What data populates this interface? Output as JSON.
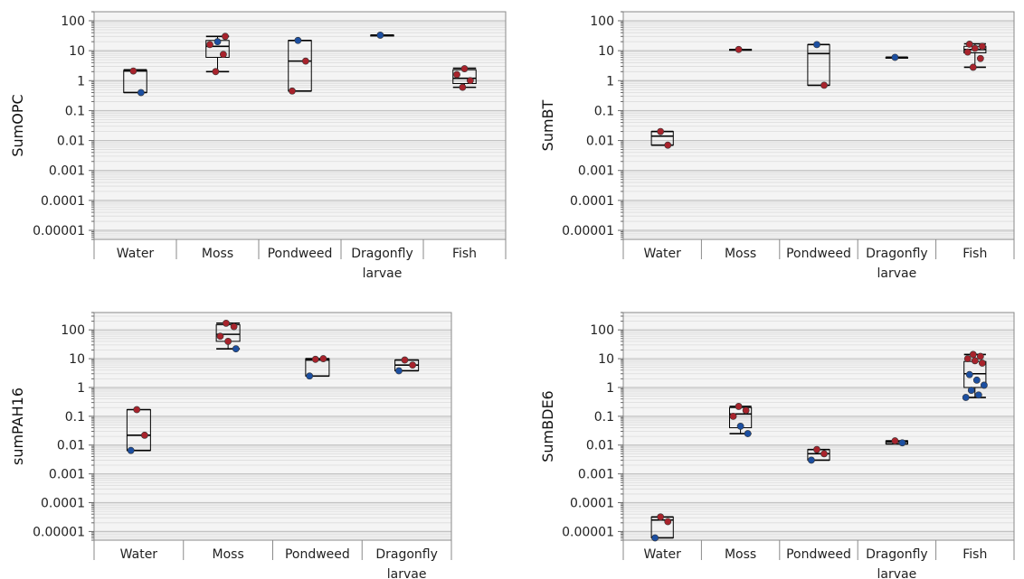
{
  "chart_data": [
    {
      "type": "box",
      "ylabel": "SumOPC",
      "yscale": "log",
      "ylim": [
        5e-06,
        200
      ],
      "yticks": [
        "100",
        "10",
        "1",
        "0.1",
        "0.01",
        "0.001",
        "0.0001",
        "0.00001"
      ],
      "categories": [
        "Water",
        "Moss",
        "Pondweed",
        "Dragonfly\nlarvae",
        "Fish"
      ],
      "boxes": [
        {
          "min": 0.4,
          "q1": 0.4,
          "median": 2.1,
          "q3": 2.2,
          "max": 2.3
        },
        {
          "min": 2.0,
          "q1": 6.0,
          "median": 14.0,
          "q3": 22.0,
          "max": 30.0
        },
        {
          "min": 0.45,
          "q1": 0.45,
          "median": 4.5,
          "q3": 22.0,
          "max": 22.0
        },
        {
          "min": 33.0,
          "q1": 33.0,
          "median": 33.0,
          "q3": 33.0,
          "max": 33.0
        },
        {
          "min": 0.6,
          "q1": 0.8,
          "median": 1.2,
          "q3": 2.3,
          "max": 2.6
        }
      ],
      "points": [
        {
          "category": 0,
          "y": 2.1,
          "color": "red"
        },
        {
          "category": 0,
          "y": 0.4,
          "color": "blue"
        },
        {
          "category": 1,
          "y": 2.0,
          "color": "red"
        },
        {
          "category": 1,
          "y": 7.5,
          "color": "red"
        },
        {
          "category": 1,
          "y": 16.0,
          "color": "red"
        },
        {
          "category": 1,
          "y": 20.0,
          "color": "blue"
        },
        {
          "category": 1,
          "y": 30.0,
          "color": "red"
        },
        {
          "category": 2,
          "y": 22.0,
          "color": "blue"
        },
        {
          "category": 2,
          "y": 4.5,
          "color": "red"
        },
        {
          "category": 2,
          "y": 0.45,
          "color": "red"
        },
        {
          "category": 3,
          "y": 33.0,
          "color": "blue"
        },
        {
          "category": 4,
          "y": 0.6,
          "color": "red"
        },
        {
          "category": 4,
          "y": 1.0,
          "color": "red"
        },
        {
          "category": 4,
          "y": 1.6,
          "color": "red"
        },
        {
          "category": 4,
          "y": 2.5,
          "color": "red"
        }
      ]
    },
    {
      "type": "box",
      "ylabel": "SumBT",
      "yscale": "log",
      "ylim": [
        5e-06,
        200
      ],
      "yticks": [
        "100",
        "10",
        "1",
        "0.1",
        "0.01",
        "0.001",
        "0.0001",
        "0.00001"
      ],
      "categories": [
        "Water",
        "Moss",
        "Pondweed",
        "Dragonfly\nlarvae",
        "Fish"
      ],
      "boxes": [
        {
          "min": 0.007,
          "q1": 0.007,
          "median": 0.014,
          "q3": 0.02,
          "max": 0.02
        },
        {
          "min": 11.0,
          "q1": 11.0,
          "median": 11.0,
          "q3": 11.0,
          "max": 11.0
        },
        {
          "min": 0.7,
          "q1": 0.7,
          "median": 8.0,
          "q3": 16.0,
          "max": 16.0
        },
        {
          "min": 6.0,
          "q1": 6.0,
          "median": 6.0,
          "q3": 6.0,
          "max": 6.0
        },
        {
          "min": 2.8,
          "q1": 8.5,
          "median": 11.0,
          "q3": 14.0,
          "max": 17.0
        }
      ],
      "points": [
        {
          "category": 0,
          "y": 0.02,
          "color": "red"
        },
        {
          "category": 0,
          "y": 0.007,
          "color": "red"
        },
        {
          "category": 1,
          "y": 11.0,
          "color": "red"
        },
        {
          "category": 2,
          "y": 16.0,
          "color": "blue"
        },
        {
          "category": 2,
          "y": 0.7,
          "color": "red"
        },
        {
          "category": 3,
          "y": 6.0,
          "color": "blue"
        },
        {
          "category": 4,
          "y": 2.8,
          "color": "red"
        },
        {
          "category": 4,
          "y": 5.5,
          "color": "red"
        },
        {
          "category": 4,
          "y": 9.0,
          "color": "red"
        },
        {
          "category": 4,
          "y": 12.0,
          "color": "red"
        },
        {
          "category": 4,
          "y": 14.0,
          "color": "red"
        },
        {
          "category": 4,
          "y": 16.5,
          "color": "red"
        }
      ]
    },
    {
      "type": "box",
      "ylabel": "sumPAH16",
      "yscale": "log",
      "ylim": [
        5e-06,
        400
      ],
      "yticks": [
        "100",
        "10",
        "1",
        "0.1",
        "0.01",
        "0.001",
        "0.0001",
        "0.00001"
      ],
      "categories": [
        "Water",
        "Moss",
        "Pondweed",
        "Dragonfly\nlarvae"
      ],
      "boxes": [
        {
          "min": 0.0065,
          "q1": 0.0065,
          "median": 0.022,
          "q3": 0.17,
          "max": 0.17
        },
        {
          "min": 22.0,
          "q1": 40.0,
          "median": 70.0,
          "q3": 150.0,
          "max": 170.0
        },
        {
          "min": 2.5,
          "q1": 2.5,
          "median": 9.0,
          "q3": 10.0,
          "max": 10.0
        },
        {
          "min": 3.8,
          "q1": 3.8,
          "median": 6.0,
          "q3": 9.0,
          "max": 9.0
        }
      ],
      "points": [
        {
          "category": 0,
          "y": 0.17,
          "color": "red"
        },
        {
          "category": 0,
          "y": 0.022,
          "color": "red"
        },
        {
          "category": 0,
          "y": 0.0065,
          "color": "blue"
        },
        {
          "category": 1,
          "y": 170.0,
          "color": "red"
        },
        {
          "category": 1,
          "y": 130.0,
          "color": "red"
        },
        {
          "category": 1,
          "y": 60.0,
          "color": "red"
        },
        {
          "category": 1,
          "y": 40.0,
          "color": "red"
        },
        {
          "category": 1,
          "y": 22.0,
          "color": "blue"
        },
        {
          "category": 2,
          "y": 9.5,
          "color": "red"
        },
        {
          "category": 2,
          "y": 10.0,
          "color": "red"
        },
        {
          "category": 2,
          "y": 2.5,
          "color": "blue"
        },
        {
          "category": 3,
          "y": 9.0,
          "color": "red"
        },
        {
          "category": 3,
          "y": 6.0,
          "color": "red"
        },
        {
          "category": 3,
          "y": 3.8,
          "color": "blue"
        }
      ]
    },
    {
      "type": "box",
      "ylabel": "SumBDE6",
      "yscale": "log",
      "ylim": [
        5e-06,
        400
      ],
      "yticks": [
        "100",
        "10",
        "1",
        "0.1",
        "0.01",
        "0.001",
        "0.0001",
        "0.00001"
      ],
      "categories": [
        "Water",
        "Moss",
        "Pondweed",
        "Dragonfly\nlarvae",
        "Fish"
      ],
      "boxes": [
        {
          "min": 6e-06,
          "q1": 6e-06,
          "median": 2.5e-05,
          "q3": 3.2e-05,
          "max": 3.2e-05
        },
        {
          "min": 0.025,
          "q1": 0.04,
          "median": 0.12,
          "q3": 0.2,
          "max": 0.22
        },
        {
          "min": 0.003,
          "q1": 0.003,
          "median": 0.005,
          "q3": 0.007,
          "max": 0.007
        },
        {
          "min": 0.011,
          "q1": 0.011,
          "median": 0.013,
          "q3": 0.014,
          "max": 0.014
        },
        {
          "min": 0.45,
          "q1": 1.0,
          "median": 3.0,
          "q3": 8.0,
          "max": 14.0
        }
      ],
      "points": [
        {
          "category": 0,
          "y": 3.2e-05,
          "color": "red"
        },
        {
          "category": 0,
          "y": 2.2e-05,
          "color": "red"
        },
        {
          "category": 0,
          "y": 6e-06,
          "color": "blue"
        },
        {
          "category": 1,
          "y": 0.22,
          "color": "red"
        },
        {
          "category": 1,
          "y": 0.16,
          "color": "red"
        },
        {
          "category": 1,
          "y": 0.1,
          "color": "red"
        },
        {
          "category": 1,
          "y": 0.045,
          "color": "blue"
        },
        {
          "category": 1,
          "y": 0.025,
          "color": "blue"
        },
        {
          "category": 2,
          "y": 0.007,
          "color": "red"
        },
        {
          "category": 2,
          "y": 0.005,
          "color": "red"
        },
        {
          "category": 2,
          "y": 0.003,
          "color": "blue"
        },
        {
          "category": 3,
          "y": 0.014,
          "color": "red"
        },
        {
          "category": 3,
          "y": 0.012,
          "color": "blue"
        },
        {
          "category": 4,
          "y": 14.0,
          "color": "red"
        },
        {
          "category": 4,
          "y": 12.0,
          "color": "red"
        },
        {
          "category": 4,
          "y": 10.0,
          "color": "red"
        },
        {
          "category": 4,
          "y": 8.5,
          "color": "red"
        },
        {
          "category": 4,
          "y": 7.0,
          "color": "red"
        },
        {
          "category": 4,
          "y": 2.8,
          "color": "blue"
        },
        {
          "category": 4,
          "y": 1.8,
          "color": "blue"
        },
        {
          "category": 4,
          "y": 1.2,
          "color": "blue"
        },
        {
          "category": 4,
          "y": 0.8,
          "color": "blue"
        },
        {
          "category": 4,
          "y": 0.55,
          "color": "blue"
        },
        {
          "category": 4,
          "y": 0.45,
          "color": "blue"
        }
      ]
    }
  ],
  "colors": {
    "red": "#a8232c",
    "blue": "#1c4fa1",
    "panel_bg": "#f4f4f4",
    "major_grid": "#c2c2c2",
    "minor_grid": "#dcdcdc",
    "box_line": "#000000"
  }
}
